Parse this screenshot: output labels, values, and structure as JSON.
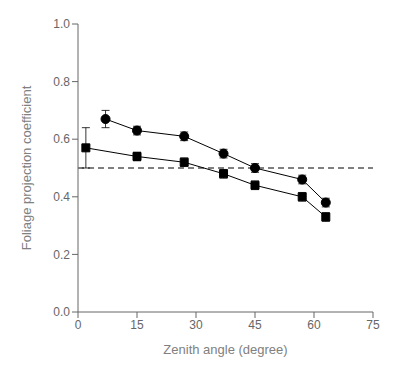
{
  "chart_data": {
    "type": "line",
    "xlabel": "Zenith angle (degree)",
    "ylabel": "Foliage projection coefficient",
    "xlim": [
      0,
      75
    ],
    "ylim": [
      0.0,
      1.0
    ],
    "xticks": [
      0,
      15,
      30,
      45,
      60,
      75
    ],
    "yticks": [
      {
        "value": 0.0,
        "label": "0.0"
      },
      {
        "value": 0.2,
        "label": "0.2"
      },
      {
        "value": 0.4,
        "label": "0.4"
      },
      {
        "value": 0.6,
        "label": "0.6"
      },
      {
        "value": 0.8,
        "label": "0.8"
      },
      {
        "value": 1.0,
        "label": "1.0"
      }
    ],
    "hline": 0.5,
    "grid": false,
    "series": [
      {
        "x": [
          7,
          15,
          27,
          37,
          45,
          57,
          63
        ],
        "values": [
          0.67,
          0.63,
          0.61,
          0.55,
          0.5,
          0.46,
          0.38
        ],
        "yerr": [
          0.03,
          0.015,
          0.015,
          0.015,
          0.015,
          0.015,
          0.015
        ],
        "marker": "circle",
        "line_style": "solid",
        "color": "black"
      },
      {
        "x": [
          2,
          15,
          27,
          37,
          45,
          57,
          63
        ],
        "values": [
          0.57,
          0.54,
          0.52,
          0.48,
          0.44,
          0.4,
          0.33
        ],
        "yerr": [
          0.07,
          0.015,
          0.015,
          0.015,
          0.015,
          0.015,
          0.015
        ],
        "marker": "square",
        "line_style": "solid",
        "color": "black"
      }
    ]
  }
}
